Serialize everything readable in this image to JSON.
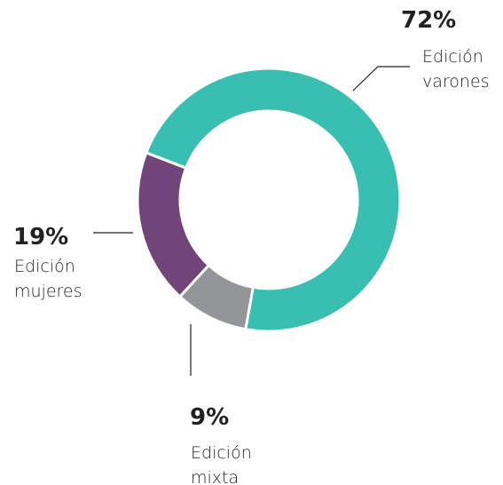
{
  "chart_data": {
    "type": "pie",
    "categories": [
      "Edición varones",
      "Edición mixta",
      "Edición mujeres"
    ],
    "values": [
      72,
      9,
      19
    ],
    "value_labels": [
      "72%",
      "9%",
      "19%"
    ],
    "colors": [
      "#38bfb1",
      "#939598",
      "#72457a"
    ]
  }
}
